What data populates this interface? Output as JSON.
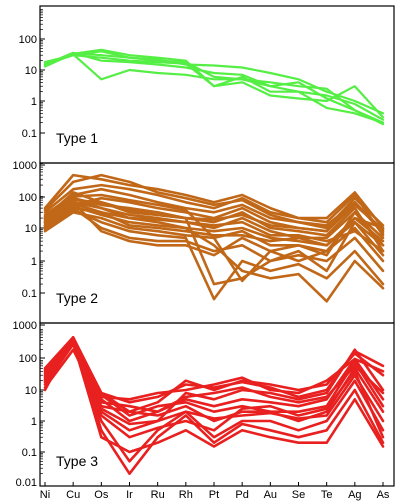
{
  "chart_data": {
    "type": "line",
    "x_categories": [
      "Ni",
      "Cu",
      "Os",
      "Ir",
      "Ru",
      "Rh",
      "Pt",
      "Pd",
      "Au",
      "Se",
      "Te",
      "Ag",
      "As"
    ],
    "y_scale": "log",
    "y_tick_labels": [
      "0.1",
      "1",
      "10",
      "100",
      "1000"
    ],
    "y_bottom_label": "0.01",
    "panels": [
      {
        "label": "Type 1",
        "color": "#55ee44",
        "ylim": [
          0.03,
          1000
        ],
        "series": [
          {
            "values": [
              15,
              30,
              40,
              25,
              20,
              18,
              6,
              5,
              4,
              3,
              2.5,
              0.5,
              0.2
            ]
          },
          {
            "values": [
              14,
              35,
              30,
              25,
              22,
              15,
              14,
              12,
              8,
              5,
              2,
              1,
              0.4
            ]
          },
          {
            "values": [
              16,
              32,
              5,
              10,
              8,
              7,
              5,
              5,
              3,
              2,
              1.5,
              0.8,
              0.25
            ]
          },
          {
            "values": [
              18,
              30,
              25,
              20,
              18,
              16,
              3,
              6,
              2,
              2,
              0.6,
              0.4,
              0.2
            ]
          },
          {
            "values": [
              13,
              33,
              45,
              30,
              25,
              20,
              3,
              4,
              1.5,
              1.2,
              1,
              3,
              0.3
            ]
          },
          {
            "values": [
              15,
              36,
              20,
              18,
              15,
              12,
              8,
              7,
              3,
              4,
              1.2,
              0.5,
              0.18
            ]
          }
        ]
      },
      {
        "label": "Type 2",
        "color": "#c06818",
        "ylim": [
          0.03,
          1000
        ],
        "series": [
          {
            "values": [
              10,
              40,
              30,
              20,
              15,
              10,
              8,
              10,
              5,
              4,
              3,
              20,
              10
            ]
          },
          {
            "values": [
              15,
              60,
              40,
              25,
              20,
              15,
              10,
              20,
              8,
              5,
              5,
              30,
              5
            ]
          },
          {
            "values": [
              20,
              80,
              50,
              40,
              30,
              20,
              15,
              30,
              10,
              8,
              6,
              40,
              2
            ]
          },
          {
            "values": [
              8,
              30,
              20,
              10,
              8,
              6,
              5,
              8,
              3,
              3,
              2,
              10,
              1
            ]
          },
          {
            "values": [
              12,
              50,
              80,
              60,
              40,
              30,
              20,
              40,
              15,
              10,
              8,
              60,
              8
            ]
          },
          {
            "values": [
              25,
              100,
              150,
              100,
              60,
              40,
              30,
              50,
              20,
              15,
              10,
              80,
              12
            ]
          },
          {
            "values": [
              30,
              150,
              200,
              150,
              100,
              60,
              40,
              80,
              30,
              20,
              15,
              100,
              6
            ]
          },
          {
            "values": [
              9,
              40,
              10,
              5,
              4,
              4,
              2,
              3,
              1,
              1.5,
              1,
              5,
              0.5
            ]
          },
          {
            "values": [
              10,
              35,
              15,
              8,
              6,
              5,
              0.07,
              1,
              0.5,
              0.8,
              0.3,
              2,
              0.2
            ]
          },
          {
            "values": [
              14,
              45,
              25,
              15,
              12,
              10,
              3,
              0.5,
              0.3,
              0.4,
              0.06,
              1,
              0.15
            ]
          },
          {
            "values": [
              18,
              70,
              60,
              35,
              25,
              20,
              0.2,
              0.3,
              1,
              2,
              0.5,
              15,
              3
            ]
          },
          {
            "values": [
              22,
              90,
              100,
              70,
              50,
              35,
              5,
              0.25,
              2,
              1,
              2,
              20,
              4
            ]
          },
          {
            "values": [
              40,
              400,
              300,
              200,
              150,
              100,
              60,
              100,
              40,
              20,
              20,
              120,
              10
            ]
          },
          {
            "values": [
              35,
              250,
              400,
              250,
              120,
              80,
              50,
              70,
              25,
              15,
              12,
              60,
              7
            ]
          },
          {
            "values": [
              12,
              60,
              8,
              4,
              3,
              3,
              1.5,
              5,
              2,
              3,
              1.5,
              30,
              3
            ]
          },
          {
            "values": [
              16,
              80,
              40,
              20,
              18,
              15,
              12,
              15,
              6,
              6,
              4,
              8,
              2
            ]
          },
          {
            "values": [
              11,
              55,
              30,
              12,
              10,
              8,
              6,
              6,
              4,
              5,
              3,
              15,
              1.5
            ]
          },
          {
            "values": [
              20,
              120,
              60,
              30,
              25,
              20,
              18,
              25,
              12,
              10,
              8,
              50,
              9
            ]
          }
        ]
      },
      {
        "label": "Type 3",
        "color": "#e82020",
        "ylim": [
          0.01,
          1000
        ],
        "series": [
          {
            "values": [
              10,
              500,
              8,
              2,
              1.5,
              3,
              1,
              2,
              2,
              1,
              2,
              50,
              2
            ]
          },
          {
            "values": [
              20,
              400,
              5,
              1,
              2,
              5,
              3,
              5,
              4,
              3,
              5,
              100,
              5
            ]
          },
          {
            "values": [
              40,
              450,
              2,
              0.5,
              1,
              8,
              5,
              10,
              8,
              5,
              8,
              200,
              10
            ]
          },
          {
            "values": [
              15,
              300,
              1,
              0.05,
              0.5,
              2,
              0.3,
              1,
              1,
              0.5,
              1,
              20,
              0.5
            ]
          },
          {
            "values": [
              50,
              500,
              0.5,
              0.02,
              0.3,
              1.5,
              0.2,
              0.8,
              0.5,
              0.3,
              0.5,
              10,
              0.2
            ]
          },
          {
            "values": [
              30,
              350,
              0.3,
              0.1,
              0.2,
              0.5,
              0.15,
              0.5,
              0.3,
              0.2,
              0.2,
              5,
              0.15
            ]
          },
          {
            "values": [
              12,
              200,
              3,
              2,
              4,
              20,
              10,
              20,
              15,
              10,
              15,
              150,
              30
            ]
          },
          {
            "values": [
              25,
              380,
              6,
              5,
              8,
              10,
              15,
              25,
              10,
              8,
              20,
              100,
              40
            ]
          },
          {
            "values": [
              18,
              420,
              4,
              3,
              2,
              6,
              8,
              12,
              6,
              4,
              6,
              60,
              8
            ]
          },
          {
            "values": [
              35,
              480,
              7,
              1.5,
              3,
              4,
              2,
              3,
              2,
              2,
              3,
              80,
              3
            ]
          },
          {
            "values": [
              22,
              330,
              2.5,
              0.8,
              1,
              2,
              1.2,
              1.5,
              1.8,
              1.2,
              1.5,
              30,
              1
            ]
          },
          {
            "values": [
              45,
              460,
              8,
              4,
              6,
              15,
              12,
              18,
              12,
              6,
              10,
              180,
              60
            ]
          },
          {
            "values": [
              28,
              410,
              1.5,
              0.3,
              0.6,
              1,
              0.5,
              2.5,
              3,
              1.5,
              2.5,
              40,
              0.3
            ]
          }
        ]
      }
    ]
  }
}
